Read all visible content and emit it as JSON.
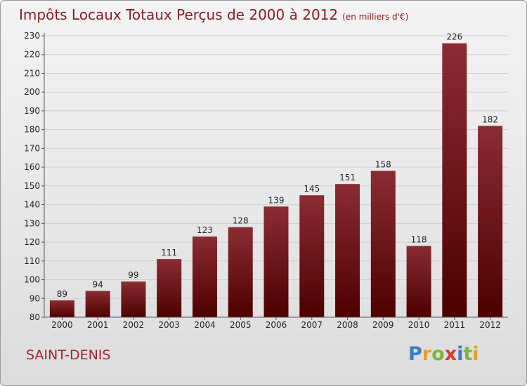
{
  "chart_data": {
    "type": "bar",
    "title": "Impôts Locaux Totaux Perçus de 2000 à 2012",
    "subtitle": "(en milliers d'€)",
    "categories": [
      "2000",
      "2001",
      "2002",
      "2003",
      "2004",
      "2005",
      "2006",
      "2007",
      "2008",
      "2009",
      "2010",
      "2011",
      "2012"
    ],
    "values": [
      89,
      94,
      99,
      111,
      123,
      128,
      139,
      145,
      151,
      158,
      118,
      226,
      182
    ],
    "ylim": [
      80,
      230
    ],
    "yticks": [
      80,
      90,
      100,
      110,
      120,
      130,
      140,
      150,
      160,
      170,
      180,
      190,
      200,
      210,
      220,
      230
    ],
    "xlabel": "",
    "ylabel": "",
    "grid": true
  },
  "footer": {
    "city": "SAINT-DENIS",
    "logo_letters": [
      "P",
      "r",
      "o",
      "x",
      "i",
      "t",
      "i"
    ],
    "logo_colors": [
      "#3a7cc4",
      "#e8a020",
      "#7bb83a",
      "#d63a2c",
      "#3a7cc4",
      "#7bb83a",
      "#e8a020"
    ]
  },
  "colors": {
    "title": "#8b1c24",
    "bar_top": "#8a2c33",
    "bar_bottom": "#4d0000"
  }
}
